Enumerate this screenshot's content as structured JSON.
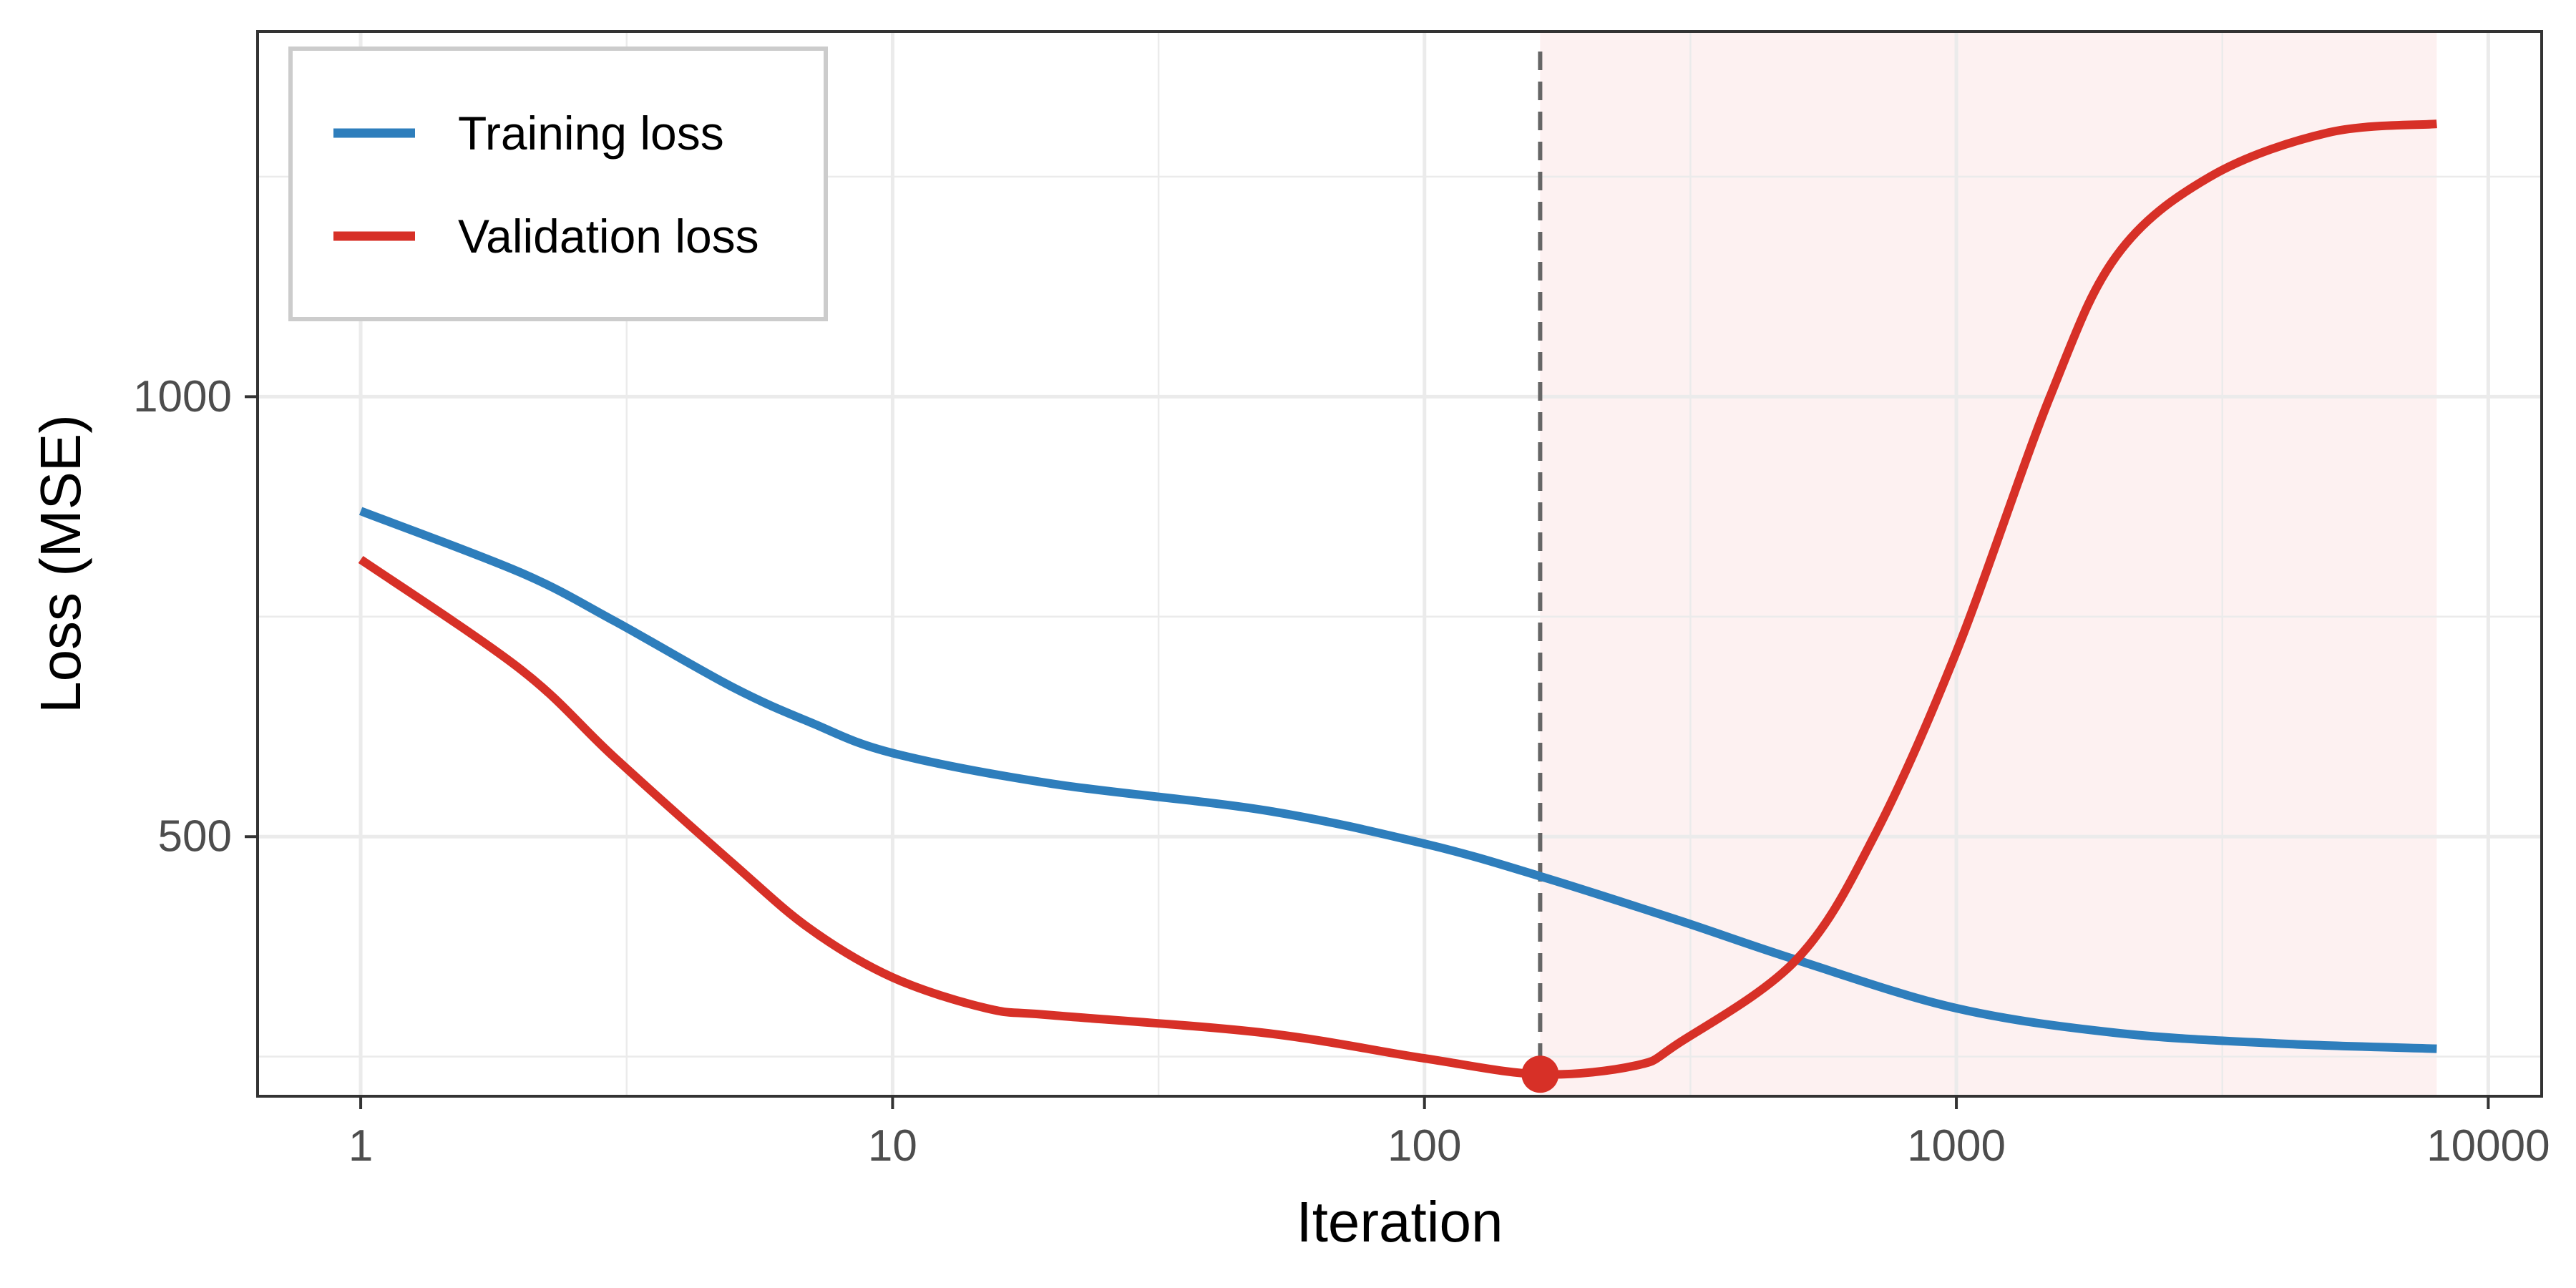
{
  "chart_data": {
    "type": "line",
    "xlabel": "Iteration",
    "ylabel": "Loss (MSE)",
    "x_scale": "log",
    "xlim": [
      0.64,
      12600
    ],
    "ylim": [
      205,
      1415
    ],
    "x_ticks": [
      1,
      10,
      100,
      1000,
      10000
    ],
    "x_tick_labels": [
      "1",
      "10",
      "100",
      "1000",
      "10000"
    ],
    "y_ticks": [
      500,
      1000
    ],
    "y_tick_labels": [
      "500",
      "1000"
    ],
    "grid": true,
    "legend": "top-left",
    "overfit_region": {
      "x_start": 165,
      "x_end": 8000,
      "color": "#fdf1f1"
    },
    "early_stop": {
      "x": 165,
      "y": 230,
      "color": "#d73027"
    },
    "series": [
      {
        "name": "Training loss",
        "color": "#2e7ebc",
        "points": [
          [
            1,
            870
          ],
          [
            2,
            800
          ],
          [
            3,
            745
          ],
          [
            5,
            670
          ],
          [
            7,
            630
          ],
          [
            10,
            595
          ],
          [
            20,
            560
          ],
          [
            50,
            530
          ],
          [
            100,
            492
          ],
          [
            165,
            455
          ],
          [
            300,
            405
          ],
          [
            500,
            360
          ],
          [
            1000,
            305
          ],
          [
            2000,
            277
          ],
          [
            4000,
            265
          ],
          [
            8000,
            259
          ]
        ]
      },
      {
        "name": "Validation loss",
        "color": "#d73027",
        "points": [
          [
            1,
            815
          ],
          [
            2,
            690
          ],
          [
            3,
            590
          ],
          [
            5,
            470
          ],
          [
            7,
            395
          ],
          [
            10,
            340
          ],
          [
            15,
            305
          ],
          [
            20,
            297
          ],
          [
            50,
            277
          ],
          [
            100,
            248
          ],
          [
            165,
            230
          ],
          [
            250,
            240
          ],
          [
            300,
            265
          ],
          [
            500,
            360
          ],
          [
            700,
            500
          ],
          [
            1000,
            710
          ],
          [
            1500,
            1000
          ],
          [
            2000,
            1160
          ],
          [
            3000,
            1250
          ],
          [
            5000,
            1300
          ],
          [
            8000,
            1310
          ]
        ]
      }
    ]
  }
}
